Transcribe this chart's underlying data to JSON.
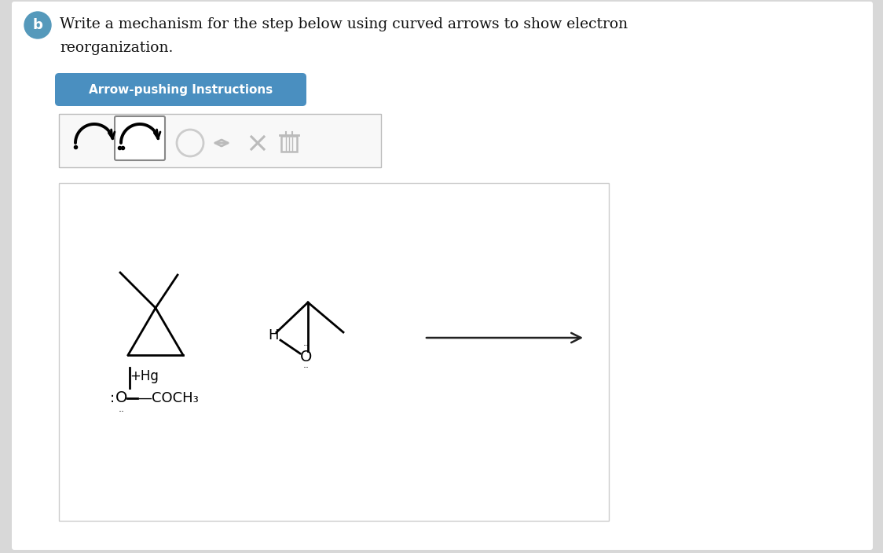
{
  "bg_color": "#d8d8d8",
  "white_bg": "#ffffff",
  "title_line1": "Write a mechanism for the step below using curved arrows to show electron",
  "title_line2": "reorganization.",
  "b_circle_color": "#5599bb",
  "btn_color": "#4a8fc0",
  "btn_text": "Arrow-pushing Instructions",
  "reaction_arrow_color": "#222222",
  "black": "#111111",
  "gray": "#aaaaaa",
  "light_gray": "#cccccc"
}
